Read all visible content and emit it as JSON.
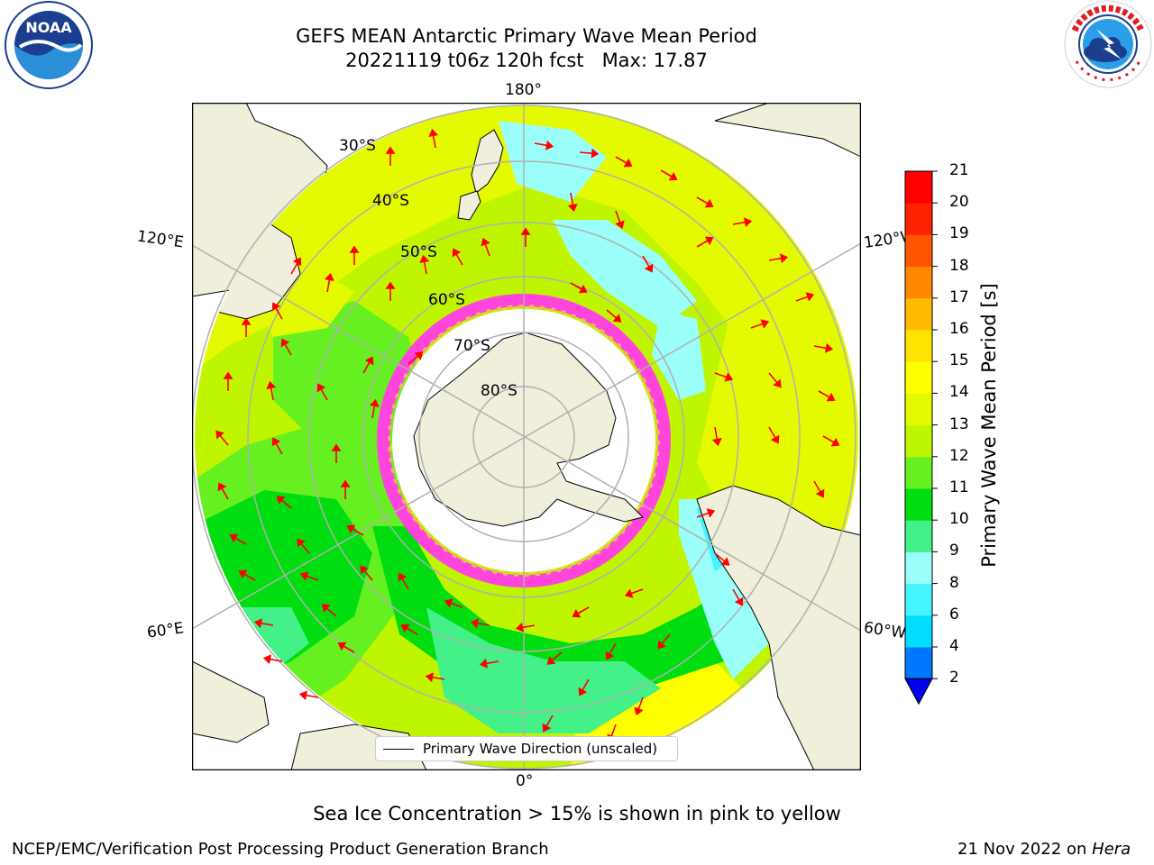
{
  "title": {
    "line1": "GEFS MEAN Antarctic Primary Wave Mean Period",
    "line2": "20221119 t06z 120h fcst   Max: 17.87"
  },
  "map": {
    "projection": "south-polar-stereographic",
    "longitude_labels": {
      "top": "180°",
      "bottom": "0°",
      "upper_left": "120°E",
      "upper_right": "120°W",
      "lower_left": "60°E",
      "lower_right": "60°W"
    },
    "latitude_labels": [
      "30°S",
      "40°S",
      "50°S",
      "60°S",
      "70°S",
      "80°S"
    ],
    "colors": {
      "land": "#efefdc",
      "ice_shelf": "#ffffff",
      "sea_ice_low": "#ff44dd",
      "sea_ice_high": "#f5b060",
      "arrows": "#ff0000",
      "graticule": "#b0b0b0"
    }
  },
  "legend": {
    "label": "Primary Wave Direction (unscaled)"
  },
  "colorbar": {
    "label": "Primary Wave Mean Period [s]",
    "ticks": [
      "2",
      "4",
      "6",
      "8",
      "9",
      "10",
      "11",
      "12",
      "13",
      "14",
      "15",
      "16",
      "17",
      "18",
      "19",
      "20",
      "21"
    ],
    "bands": [
      {
        "from": 2,
        "to": 4,
        "color": "#0077ff"
      },
      {
        "from": 4,
        "to": 6,
        "color": "#00ddff"
      },
      {
        "from": 6,
        "to": 8,
        "color": "#44f4ff"
      },
      {
        "from": 8,
        "to": 9,
        "color": "#99fff8"
      },
      {
        "from": 9,
        "to": 10,
        "color": "#44f088"
      },
      {
        "from": 10,
        "to": 11,
        "color": "#00dd11"
      },
      {
        "from": 11,
        "to": 12,
        "color": "#66f022"
      },
      {
        "from": 12,
        "to": 13,
        "color": "#c0f500"
      },
      {
        "from": 13,
        "to": 14,
        "color": "#e4fa00"
      },
      {
        "from": 14,
        "to": 15,
        "color": "#ffff00"
      },
      {
        "from": 15,
        "to": 16,
        "color": "#ffe400"
      },
      {
        "from": 16,
        "to": 17,
        "color": "#ffbb00"
      },
      {
        "from": 17,
        "to": 18,
        "color": "#ff8800"
      },
      {
        "from": 18,
        "to": 19,
        "color": "#ff5500"
      },
      {
        "from": 19,
        "to": 20,
        "color": "#ff2200"
      },
      {
        "from": 20,
        "to": 21,
        "color": "#ff0000"
      }
    ],
    "underflow_color": "#0000ee"
  },
  "note": "Sea Ice Concentration > 15% is shown in pink to yellow",
  "footer": {
    "left": "NCEP/EMC/Verification Post Processing Product Generation Branch",
    "date": "21 Nov 2022 on ",
    "host": "Hera"
  }
}
